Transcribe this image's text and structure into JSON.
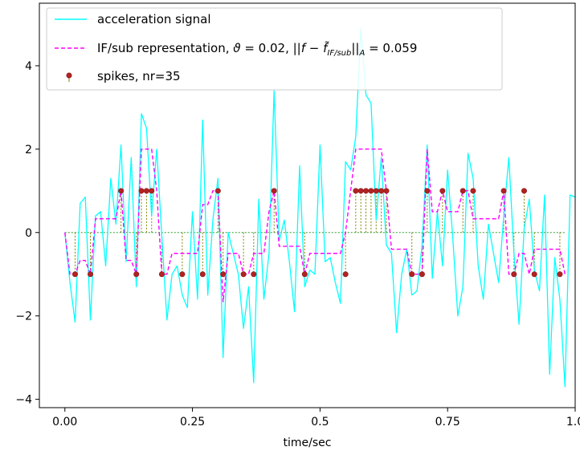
{
  "chart_data": {
    "type": "line",
    "xlabel": "time/sec",
    "ylabel": "",
    "xlim": [
      -0.05,
      1.0
    ],
    "ylim": [
      -4.2,
      5.5
    ],
    "xticks": [
      0.0,
      0.25,
      0.5,
      0.75,
      1.0
    ],
    "xtick_labels": [
      "0.00",
      "0.25",
      "0.5",
      "0.75",
      "1.0"
    ],
    "yticks": [
      -4,
      -2,
      0,
      2,
      4
    ],
    "ytick_labels": [
      "−4",
      "−2",
      "0",
      "2",
      "4"
    ],
    "grid": false,
    "legend_placement": "upper-left",
    "colors": {
      "signal": "#00ffff",
      "representation": "#ff00ff",
      "spike_marker": "#b22222",
      "stem": "#808000",
      "baseline": "#2ca02c"
    },
    "series": [
      {
        "name": "acceleration signal",
        "style": "solid",
        "x": [
          0.0,
          0.01,
          0.02,
          0.03,
          0.04,
          0.05,
          0.06,
          0.07,
          0.08,
          0.09,
          0.1,
          0.11,
          0.12,
          0.13,
          0.14,
          0.15,
          0.16,
          0.17,
          0.18,
          0.19,
          0.2,
          0.21,
          0.22,
          0.23,
          0.24,
          0.25,
          0.26,
          0.27,
          0.28,
          0.29,
          0.3,
          0.31,
          0.32,
          0.33,
          0.34,
          0.35,
          0.36,
          0.37,
          0.38,
          0.39,
          0.4,
          0.41,
          0.42,
          0.43,
          0.44,
          0.45,
          0.46,
          0.47,
          0.48,
          0.49,
          0.5,
          0.51,
          0.52,
          0.53,
          0.54,
          0.55,
          0.56,
          0.57,
          0.58,
          0.59,
          0.6,
          0.61,
          0.62,
          0.63,
          0.64,
          0.65,
          0.66,
          0.67,
          0.68,
          0.69,
          0.7,
          0.71,
          0.72,
          0.73,
          0.74,
          0.75,
          0.76,
          0.77,
          0.78,
          0.79,
          0.8,
          0.81,
          0.82,
          0.83,
          0.84,
          0.85,
          0.86,
          0.87,
          0.88,
          0.89,
          0.9,
          0.91,
          0.92,
          0.93,
          0.94,
          0.95,
          0.96,
          0.97,
          0.98,
          0.99,
          1.0
        ],
        "y": [
          0.0,
          -1.2,
          -2.15,
          0.7,
          0.85,
          -2.1,
          0.4,
          0.5,
          -0.8,
          1.3,
          0.2,
          2.1,
          -0.7,
          1.8,
          -1.3,
          2.85,
          2.5,
          0.4,
          2.0,
          -0.1,
          -2.1,
          -1.0,
          -0.8,
          -1.5,
          -1.8,
          0.5,
          -1.6,
          2.7,
          -1.5,
          0.3,
          1.3,
          -3.0,
          0.0,
          -0.5,
          -1.0,
          -2.3,
          -1.3,
          -3.6,
          0.8,
          -1.6,
          -0.5,
          3.4,
          -0.2,
          0.3,
          -0.7,
          -1.9,
          1.6,
          -1.3,
          -0.9,
          -1.0,
          2.1,
          -0.7,
          -0.6,
          -1.2,
          -1.7,
          1.7,
          1.5,
          2.3,
          4.9,
          3.3,
          3.1,
          0.3,
          1.8,
          -0.3,
          -0.5,
          -2.4,
          -1.0,
          -0.4,
          -1.5,
          -1.4,
          -0.3,
          2.1,
          -1.1,
          0.5,
          -0.8,
          1.5,
          -0.1,
          -2.0,
          -1.3,
          1.9,
          1.3,
          -0.8,
          -1.6,
          0.2,
          -0.5,
          -1.2,
          0.4,
          1.8,
          -0.5,
          -2.2,
          0.1,
          0.8,
          -0.9,
          -1.4,
          0.9,
          -3.4,
          -0.6,
          -1.6,
          -3.7,
          0.9,
          0.85
        ]
      },
      {
        "name": "IF/sub representation, ϑ = 0.02, ||f − f̃_IF/sub||_A = 0.059",
        "style": "dashed",
        "x": [
          0.0,
          0.01,
          0.02,
          0.03,
          0.04,
          0.05,
          0.06,
          0.07,
          0.08,
          0.09,
          0.1,
          0.11,
          0.12,
          0.13,
          0.14,
          0.15,
          0.16,
          0.17,
          0.18,
          0.19,
          0.2,
          0.21,
          0.22,
          0.23,
          0.24,
          0.25,
          0.26,
          0.27,
          0.28,
          0.29,
          0.3,
          0.31,
          0.32,
          0.33,
          0.34,
          0.35,
          0.36,
          0.37,
          0.38,
          0.39,
          0.4,
          0.41,
          0.42,
          0.43,
          0.44,
          0.45,
          0.46,
          0.47,
          0.48,
          0.49,
          0.5,
          0.51,
          0.52,
          0.53,
          0.54,
          0.55,
          0.56,
          0.57,
          0.58,
          0.59,
          0.6,
          0.61,
          0.62,
          0.63,
          0.64,
          0.65,
          0.66,
          0.67,
          0.68,
          0.69,
          0.7,
          0.71,
          0.72,
          0.73,
          0.74,
          0.75,
          0.76,
          0.77,
          0.78,
          0.79,
          0.8,
          0.81,
          0.82,
          0.83,
          0.84,
          0.85,
          0.86,
          0.87,
          0.88,
          0.89,
          0.9,
          0.91,
          0.92,
          0.93,
          0.94,
          0.95,
          0.96,
          0.97,
          0.98
        ],
        "y": [
          0.0,
          -1.0,
          -1.0,
          -0.67,
          -0.67,
          -1.0,
          0.33,
          0.33,
          0.33,
          0.33,
          0.33,
          1.0,
          -0.67,
          -0.67,
          -1.0,
          2.0,
          2.0,
          2.0,
          1.0,
          -1.0,
          -1.0,
          -0.5,
          -0.5,
          -0.5,
          -0.5,
          -0.5,
          -0.5,
          0.67,
          0.67,
          1.0,
          1.0,
          -1.67,
          -0.5,
          -0.5,
          -0.5,
          -1.0,
          -1.0,
          -0.5,
          -0.5,
          -0.5,
          0.5,
          1.0,
          -0.33,
          -0.33,
          -0.33,
          -0.33,
          -0.33,
          -1.0,
          -0.5,
          -0.5,
          -0.5,
          -0.5,
          -0.5,
          -0.5,
          -0.5,
          0.0,
          1.0,
          2.0,
          2.0,
          2.0,
          2.0,
          2.0,
          2.0,
          1.0,
          -0.4,
          -0.4,
          -0.4,
          -0.4,
          -1.0,
          -1.0,
          -1.0,
          2.0,
          0.5,
          0.5,
          1.0,
          0.5,
          0.5,
          0.5,
          1.0,
          1.0,
          0.33,
          0.33,
          0.33,
          0.33,
          0.33,
          0.33,
          1.0,
          -1.0,
          -1.0,
          -0.5,
          -0.5,
          -1.0,
          -0.4,
          -0.4,
          -0.4,
          -0.4,
          -0.4,
          -0.4,
          -1.0
        ]
      }
    ],
    "spikes": {
      "name": "spikes, nr=35",
      "x": [
        0.02,
        0.05,
        0.11,
        0.14,
        0.15,
        0.16,
        0.17,
        0.19,
        0.23,
        0.27,
        0.3,
        0.31,
        0.35,
        0.37,
        0.41,
        0.47,
        0.55,
        0.57,
        0.58,
        0.59,
        0.6,
        0.61,
        0.62,
        0.63,
        0.68,
        0.7,
        0.71,
        0.74,
        0.78,
        0.8,
        0.86,
        0.88,
        0.9,
        0.92,
        0.97
      ],
      "y": [
        -1,
        -1,
        1,
        -1,
        1,
        1,
        1,
        -1,
        -1,
        -1,
        1,
        -1,
        -1,
        -1,
        1,
        -1,
        -1,
        1,
        1,
        1,
        1,
        1,
        1,
        1,
        -1,
        -1,
        1,
        1,
        1,
        1,
        1,
        -1,
        1,
        -1,
        -1
      ]
    }
  }
}
